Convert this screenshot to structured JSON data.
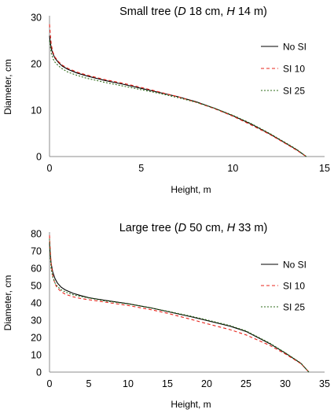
{
  "chart_data": [
    {
      "type": "line",
      "title_parts": [
        "Small tree (",
        "D",
        " 18 cm, ",
        "H",
        " 14 m)"
      ],
      "xlabel": "Height, m",
      "ylabel": "Diameter, cm",
      "xlim": [
        0,
        15
      ],
      "ylim": [
        0,
        30
      ],
      "xticks": [
        "0",
        "5",
        "10",
        "15"
      ],
      "yticks": [
        "0",
        "10",
        "20",
        "30"
      ],
      "grid": false,
      "legend_position": "right",
      "series": [
        {
          "name": "No SI",
          "color": "#000000",
          "dash": "solid",
          "x": [
            0,
            0.05,
            0.1,
            0.2,
            0.3,
            0.5,
            0.7,
            1,
            1.5,
            2,
            3,
            4,
            5,
            6,
            7,
            8,
            9,
            10,
            11,
            12,
            13,
            13.5,
            14
          ],
          "y": [
            26,
            24.5,
            23.2,
            22,
            21.2,
            20.2,
            19.5,
            18.8,
            18,
            17.4,
            16.4,
            15.6,
            14.7,
            13.8,
            12.9,
            11.8,
            10.4,
            8.8,
            7.0,
            4.9,
            2.6,
            1.4,
            0
          ]
        },
        {
          "name": "SI 10",
          "color": "#e8241c",
          "dash": "4,3",
          "x": [
            0,
            0.05,
            0.1,
            0.2,
            0.3,
            0.5,
            0.7,
            1,
            1.5,
            2,
            3,
            4,
            5,
            6,
            7,
            8,
            9,
            10,
            11,
            12,
            13,
            13.5,
            14
          ],
          "y": [
            28.5,
            26,
            24,
            22.3,
            21.4,
            20.4,
            19.7,
            19,
            18.2,
            17.6,
            16.6,
            15.8,
            14.9,
            13.9,
            12.9,
            11.7,
            10.3,
            8.7,
            6.8,
            4.8,
            2.5,
            1.3,
            0
          ]
        },
        {
          "name": "SI 25",
          "color": "#2e6b1a",
          "dash": "2,2",
          "x": [
            0,
            0.05,
            0.1,
            0.2,
            0.3,
            0.5,
            0.7,
            1,
            1.5,
            2,
            3,
            4,
            5,
            6,
            7,
            8,
            9,
            10,
            11,
            12,
            13,
            13.5,
            14
          ],
          "y": [
            25,
            23.5,
            22.2,
            21,
            20.3,
            19.5,
            18.9,
            18.2,
            17.5,
            16.9,
            16,
            15.2,
            14.4,
            13.6,
            12.7,
            11.7,
            10.4,
            8.9,
            7.1,
            5.0,
            2.7,
            1.5,
            0
          ]
        }
      ]
    },
    {
      "type": "line",
      "title_parts": [
        "Large tree (",
        "D",
        " 50 cm, ",
        "H",
        " 33 m)"
      ],
      "xlabel": "Height, m",
      "ylabel": "Diameter, cm",
      "xlim": [
        0,
        35
      ],
      "ylim": [
        0,
        80
      ],
      "xticks": [
        "0",
        "5",
        "10",
        "15",
        "20",
        "25",
        "30",
        "35"
      ],
      "yticks": [
        "0",
        "10",
        "20",
        "30",
        "40",
        "50",
        "60",
        "70",
        "80"
      ],
      "grid": false,
      "legend_position": "right",
      "series": [
        {
          "name": "No SI",
          "color": "#000000",
          "dash": "solid",
          "x": [
            0,
            0.1,
            0.2,
            0.4,
            0.7,
            1,
            1.5,
            2,
            3,
            4,
            5,
            7,
            10,
            13,
            15,
            18,
            20,
            23,
            25,
            28,
            30,
            32,
            33
          ],
          "y": [
            75,
            68,
            63,
            58,
            54,
            51.5,
            49,
            47.5,
            45.5,
            44.2,
            43,
            41.5,
            39.5,
            37,
            35,
            32,
            29.8,
            26.5,
            23.5,
            16.5,
            11,
            5,
            0
          ]
        },
        {
          "name": "SI 10",
          "color": "#e8241c",
          "dash": "4,3",
          "x": [
            0,
            0.1,
            0.2,
            0.4,
            0.7,
            1,
            1.5,
            2,
            3,
            4,
            5,
            7,
            10,
            13,
            15,
            18,
            20,
            23,
            25,
            28,
            30,
            32,
            33
          ],
          "y": [
            79,
            70,
            63,
            56,
            51,
            48.5,
            46.5,
            45,
            43.5,
            42.5,
            41.8,
            40.5,
            38.5,
            36,
            34,
            30.5,
            28,
            24.5,
            21.5,
            15.5,
            10.5,
            4.8,
            0
          ]
        },
        {
          "name": "SI 25",
          "color": "#2e6b1a",
          "dash": "2,2",
          "x": [
            0,
            0.1,
            0.2,
            0.4,
            0.7,
            1,
            1.5,
            2,
            3,
            4,
            5,
            7,
            10,
            13,
            15,
            18,
            20,
            23,
            25,
            28,
            30,
            32,
            33
          ],
          "y": [
            77,
            66,
            60,
            55,
            51.5,
            49.5,
            47.5,
            46.3,
            44.7,
            43.7,
            42.8,
            41.2,
            39.4,
            37,
            35.2,
            32.3,
            30.2,
            26.8,
            23.8,
            16.8,
            11.2,
            5.2,
            0
          ]
        }
      ]
    }
  ]
}
